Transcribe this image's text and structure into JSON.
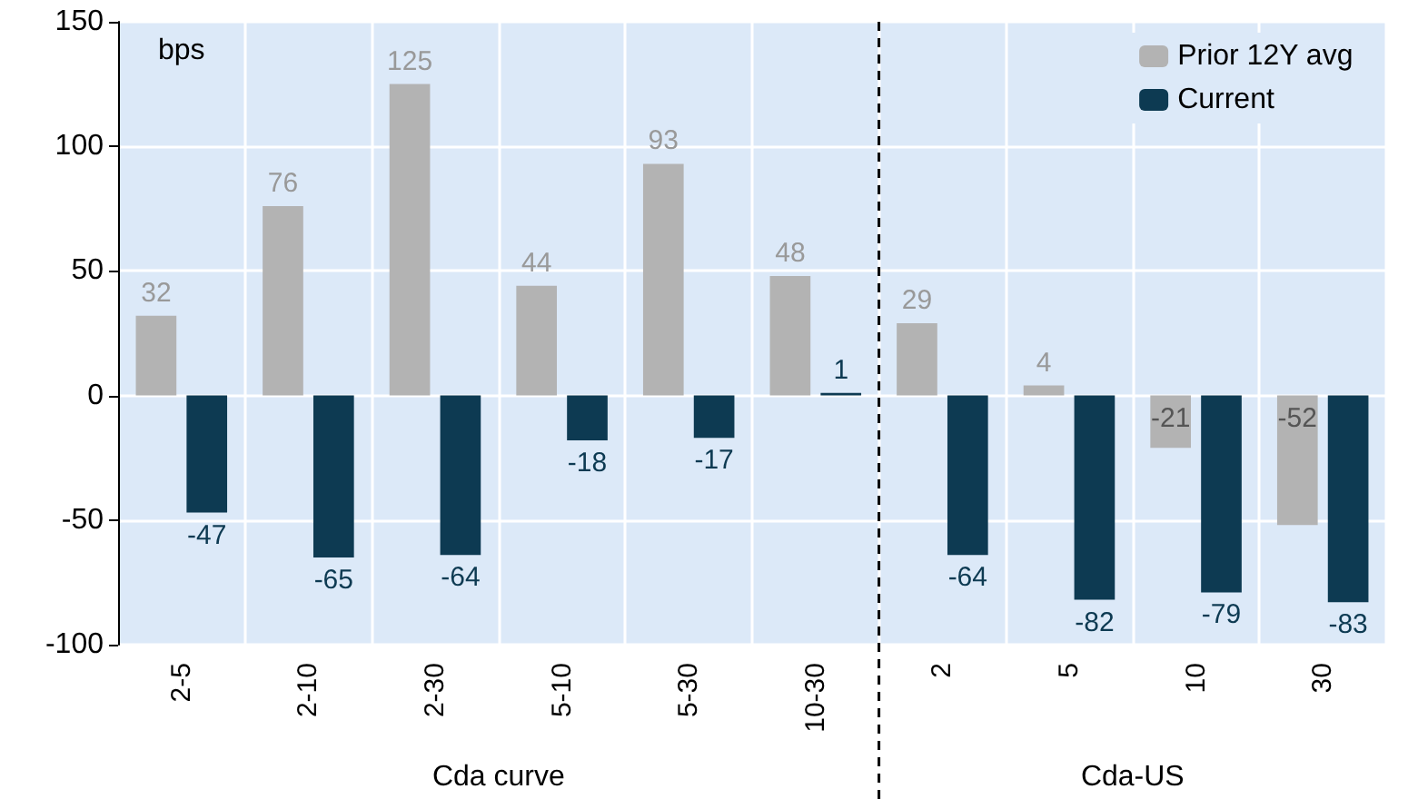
{
  "chart_data": {
    "type": "bar",
    "categories": [
      "2-5",
      "2-10",
      "2-30",
      "5-10",
      "5-30",
      "10-30",
      "2",
      "5",
      "10",
      "30"
    ],
    "series": [
      {
        "name": "Prior 12Y avg",
        "color": "#b3b3b3",
        "values": [
          32,
          76,
          125,
          44,
          93,
          48,
          29,
          4,
          -21,
          -52
        ]
      },
      {
        "name": "Current",
        "color": "#0d3a52",
        "values": [
          -47,
          -65,
          -64,
          -18,
          -17,
          1,
          -64,
          -82,
          -79,
          -83
        ]
      }
    ],
    "ylim": [
      -100,
      150
    ],
    "yticks": [
      -100,
      -50,
      0,
      50,
      100,
      150
    ],
    "grid": true,
    "legend": "top right",
    "data_labels": true,
    "ylabel": "bps",
    "ref_lines": [
      {
        "axis": "x",
        "value": "2",
        "line_style": "dashed",
        "color": "#000000"
      }
    ],
    "annotations": [
      "Cda curve",
      "Cda-US"
    ]
  }
}
